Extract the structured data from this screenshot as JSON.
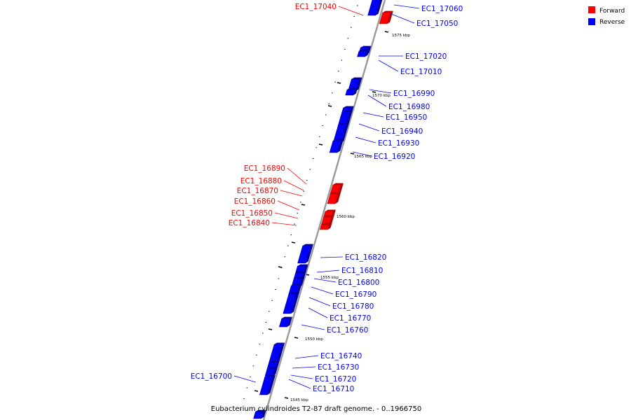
{
  "caption": "Eubacterium cylindroides T2-87 draft genome. - 0..1966750",
  "legend": [
    {
      "label": "Forward",
      "color": "#ff0000"
    },
    {
      "label": "Reverse",
      "color": "#0000ff"
    }
  ],
  "colors": {
    "forward": "#ff0000",
    "forward_side": "#b30000",
    "reverse": "#0000ff",
    "reverse_side": "#0000a0",
    "backbone": "#999999",
    "tick": "#000000"
  },
  "kbp_labels": [
    "1575 kbp",
    "1570 kbp",
    "1565 kbp",
    "1560 kbp",
    "1555 kbp",
    "1550 kbp",
    "1545 kbp"
  ],
  "genes": [
    {
      "id": "EC1_17060",
      "strand": "reverse"
    },
    {
      "id": "EC1_17050",
      "strand": "reverse"
    },
    {
      "id": "EC1_17040",
      "strand": "forward"
    },
    {
      "id": "EC1_17020",
      "strand": "reverse"
    },
    {
      "id": "EC1_17010",
      "strand": "reverse"
    },
    {
      "id": "EC1_16990",
      "strand": "reverse"
    },
    {
      "id": "EC1_16980",
      "strand": "reverse"
    },
    {
      "id": "EC1_16950",
      "strand": "reverse"
    },
    {
      "id": "EC1_16940",
      "strand": "reverse"
    },
    {
      "id": "EC1_16930",
      "strand": "reverse"
    },
    {
      "id": "EC1_16920",
      "strand": "reverse"
    },
    {
      "id": "EC1_16890",
      "strand": "forward"
    },
    {
      "id": "EC1_16880",
      "strand": "forward"
    },
    {
      "id": "EC1_16870",
      "strand": "forward"
    },
    {
      "id": "EC1_16860",
      "strand": "forward"
    },
    {
      "id": "EC1_16850",
      "strand": "forward"
    },
    {
      "id": "EC1_16840",
      "strand": "forward"
    },
    {
      "id": "EC1_16820",
      "strand": "reverse"
    },
    {
      "id": "EC1_16810",
      "strand": "reverse"
    },
    {
      "id": "EC1_16800",
      "strand": "reverse"
    },
    {
      "id": "EC1_16790",
      "strand": "reverse"
    },
    {
      "id": "EC1_16780",
      "strand": "reverse"
    },
    {
      "id": "EC1_16770",
      "strand": "reverse"
    },
    {
      "id": "EC1_16760",
      "strand": "reverse"
    },
    {
      "id": "EC1_16740",
      "strand": "reverse"
    },
    {
      "id": "EC1_16730",
      "strand": "reverse"
    },
    {
      "id": "EC1_16720",
      "strand": "reverse"
    },
    {
      "id": "EC1_16710",
      "strand": "reverse"
    },
    {
      "id": "EC1_16700",
      "strand": "reverse"
    }
  ]
}
